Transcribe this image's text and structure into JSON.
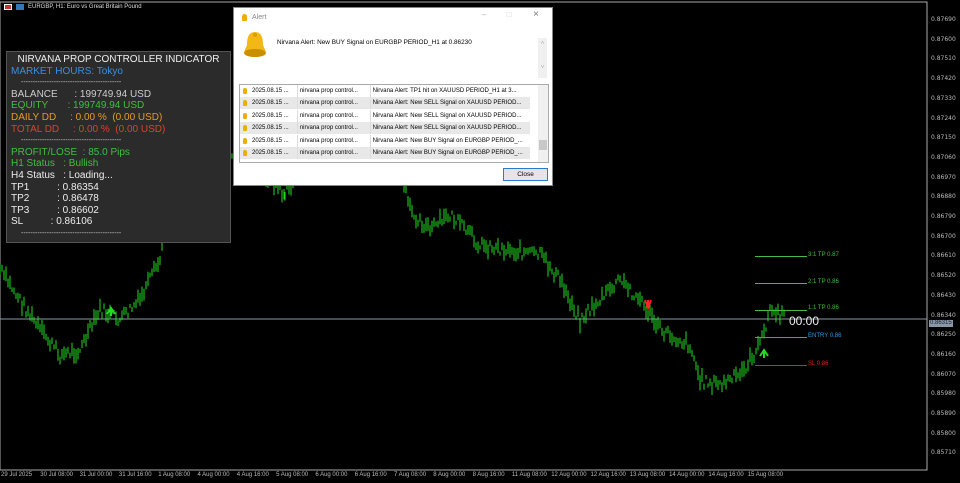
{
  "window": {
    "title": "EURGBP, H1: Euro vs Great Britain Pound"
  },
  "colors": {
    "candle": "#22dd22",
    "panel_bg": "#2b2b2b",
    "tp": "#44bb44",
    "entry": "#2d9be0",
    "sl": "#dd2222",
    "market": "#3c8ee0",
    "equity": "#3fbf3f",
    "daily": "#e59b20",
    "total": "#d9452a"
  },
  "price_axis": [
    "0.87690",
    "0.87600",
    "0.87510",
    "0.87420",
    "0.87330",
    "0.87240",
    "0.87150",
    "0.87060",
    "0.86970",
    "0.86880",
    "0.86790",
    "0.86700",
    "0.86610",
    "0.86520",
    "0.86430",
    "0.86340",
    "0.86250",
    "0.86160",
    "0.86070",
    "0.85980",
    "0.85890",
    "0.85800",
    "0.85710"
  ],
  "current_price": "0.86315",
  "time_axis": [
    "29 Jul 2025",
    "30 Jul 08:00",
    "31 Jul 00:00",
    "31 Jul 16:00",
    "1 Aug 08:00",
    "4 Aug 00:00",
    "4 Aug 16:00",
    "5 Aug 08:00",
    "6 Aug 00:00",
    "6 Aug 16:00",
    "7 Aug 08:00",
    "8 Aug 00:00",
    "8 Aug 16:00",
    "11 Aug 08:00",
    "12 Aug 00:00",
    "12 Aug 16:00",
    "13 Aug 08:00",
    "14 Aug 00:00",
    "14 Aug 16:00",
    "15 Aug 08:00"
  ],
  "price_series": [
    0.86634,
    0.86507,
    0.86381,
    0.86275,
    0.86296,
    0.86465,
    0.86423,
    0.86507,
    0.86675,
    0.86928,
    0.87181,
    0.87307,
    0.87223,
    0.87139,
    0.87054,
    0.86949,
    0.87054,
    0.87139,
    0.87181,
    0.87139,
    0.87054,
    0.86886,
    0.86802,
    0.86865,
    0.86739,
    0.86718,
    0.86697,
    0.86591,
    0.86423,
    0.86507,
    0.86591,
    0.86507,
    0.86381,
    0.86318,
    0.8617,
    0.86149,
    0.86191,
    0.86318,
    0.86465,
    0.86431
  ],
  "panel": {
    "title": "NIRVANA PROP CONTROLLER INDICATOR",
    "market_hours": "MARKET HOURS: Tokyo",
    "sep": "-------------------------------------------",
    "balance": "BALANCE      : 199749.94 USD",
    "equity": "EQUITY       : 199749.94 USD",
    "daily_dd": "DAILY DD     : 0.00 %  (0.00 USD)",
    "total_dd": "TOTAL DD     : 0.00 %  (0.00 USD)",
    "profit": "PROFIT/LOSE  : 85.0 Pips",
    "h1": "H1 Status   : Bullish",
    "h4": "H4 Status   : Loading...",
    "tp1": "TP1          : 0.86354",
    "tp2": "TP2          : 0.86478",
    "tp3": "TP3          : 0.86602",
    "sl": "SL          : 0.86106"
  },
  "levels": {
    "tp3": "3:1 TP 0.87",
    "tp2": "2:1 TP 0.86",
    "tp1": "1:1 TP 0.86",
    "entry": "ENTRY 0.86",
    "sl": "SL 0.86",
    "timer": "00:00"
  },
  "alert": {
    "title": "Alert",
    "message": "Nirvana Alert: New BUY Signal on EURGBP PERIOD_H1 at 0.86230",
    "close": "Close",
    "rows": [
      {
        "time": "2025.08.15 ...",
        "source": "nirvana prop control...",
        "text": "Nirvana Alert: TP1 hit on XAUUSD PERIOD_H1 at 3..."
      },
      {
        "time": "2025.08.15 ...",
        "source": "nirvana prop control...",
        "text": "Nirvana Alert: New SELL Signal on XAUUSD PERIOD..."
      },
      {
        "time": "2025.08.15 ...",
        "source": "nirvana prop control...",
        "text": "Nirvana Alert: New SELL Signal on XAUUSD PERIOD..."
      },
      {
        "time": "2025.08.15 ...",
        "source": "nirvana prop control...",
        "text": "Nirvana Alert: New SELL Signal on XAUUSD PERIOD..."
      },
      {
        "time": "2025.08.15 ...",
        "source": "nirvana prop control...",
        "text": "Nirvana Alert: New BUY Signal on EURGBP PERIOD_..."
      },
      {
        "time": "2025.08.15 ...",
        "source": "nirvana prop control...",
        "text": "Nirvana Alert: New BUY Signal on EURGBP PERIOD_..."
      }
    ]
  }
}
